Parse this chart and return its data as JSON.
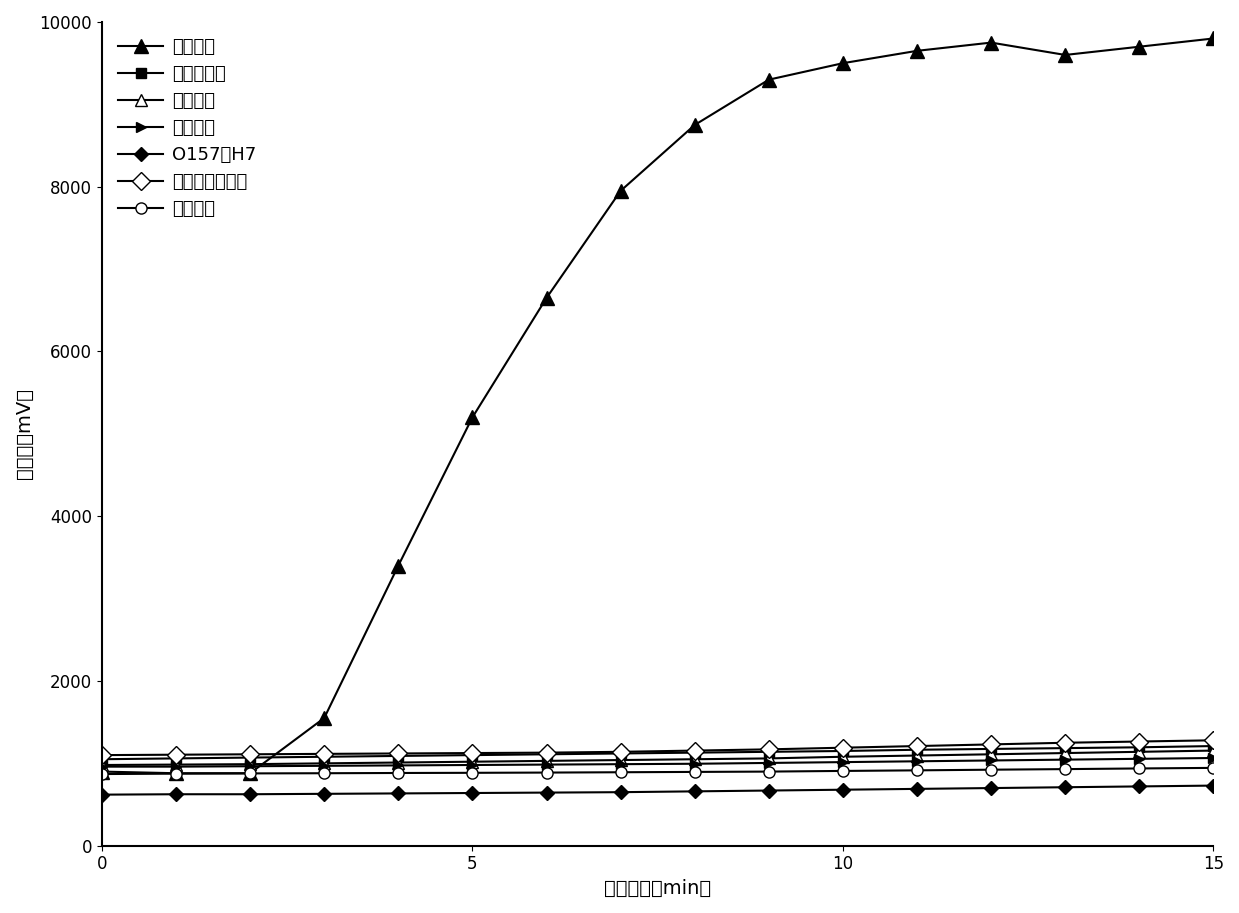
{
  "x": [
    0,
    1,
    2,
    3,
    4,
    5,
    6,
    7,
    8,
    9,
    10,
    11,
    12,
    13,
    14,
    15
  ],
  "series": [
    {
      "label": "隐孢子虫",
      "marker": "^",
      "marker_filled": true,
      "marker_size": 10,
      "line_style": "-",
      "color": "#000000",
      "values": [
        900,
        880,
        880,
        1550,
        3400,
        5200,
        6650,
        7950,
        8750,
        9300,
        9500,
        9650,
        9750,
        9600,
        9700,
        9800
      ]
    },
    {
      "label": "空肠弯曲菌",
      "marker": "s",
      "marker_filled": true,
      "marker_size": 7,
      "line_style": "-",
      "color": "#000000",
      "values": [
        1050,
        1060,
        1070,
        1080,
        1090,
        1100,
        1110,
        1120,
        1130,
        1140,
        1150,
        1165,
        1175,
        1185,
        1195,
        1210
      ]
    },
    {
      "label": "沙门氏菌",
      "marker": "^",
      "marker_filled": false,
      "marker_size": 8,
      "line_style": "-",
      "color": "#000000",
      "values": [
        980,
        985,
        990,
        1000,
        1010,
        1020,
        1030,
        1040,
        1050,
        1060,
        1080,
        1095,
        1110,
        1125,
        1140,
        1155
      ]
    },
    {
      "label": "志贺氏菌",
      "marker": ">",
      "marker_filled": true,
      "marker_size": 7,
      "line_style": "-",
      "color": "#000000",
      "values": [
        960,
        960,
        965,
        970,
        975,
        980,
        985,
        990,
        995,
        1005,
        1015,
        1025,
        1035,
        1045,
        1055,
        1065
      ]
    },
    {
      "label": "O157：H7",
      "marker": "D",
      "marker_filled": true,
      "marker_size": 7,
      "line_style": "-",
      "color": "#000000",
      "values": [
        620,
        625,
        625,
        630,
        635,
        640,
        645,
        650,
        660,
        670,
        680,
        690,
        700,
        710,
        720,
        730
      ]
    },
    {
      "label": "蓝氏贾第鞭毛虫",
      "marker": "D",
      "marker_filled": false,
      "marker_size": 9,
      "line_style": "-",
      "color": "#000000",
      "values": [
        1100,
        1105,
        1110,
        1115,
        1120,
        1125,
        1130,
        1140,
        1155,
        1170,
        1190,
        1210,
        1230,
        1250,
        1265,
        1280
      ]
    },
    {
      "label": "阴性对照",
      "marker": "o",
      "marker_filled": false,
      "marker_size": 8,
      "line_style": "-",
      "color": "#000000",
      "values": [
        870,
        875,
        878,
        880,
        883,
        885,
        888,
        892,
        896,
        900,
        908,
        915,
        923,
        930,
        938,
        945
      ]
    }
  ],
  "xlabel": "反应时间（min）",
  "ylabel": "荧光值（mV）",
  "xlim": [
    0,
    15
  ],
  "ylim": [
    0,
    10000
  ],
  "yticks": [
    0,
    2000,
    4000,
    6000,
    8000,
    10000
  ],
  "xticks": [
    0,
    5,
    10,
    15
  ],
  "background_color": "#ffffff",
  "title_fontsize": 14,
  "axis_fontsize": 14,
  "legend_fontsize": 13
}
